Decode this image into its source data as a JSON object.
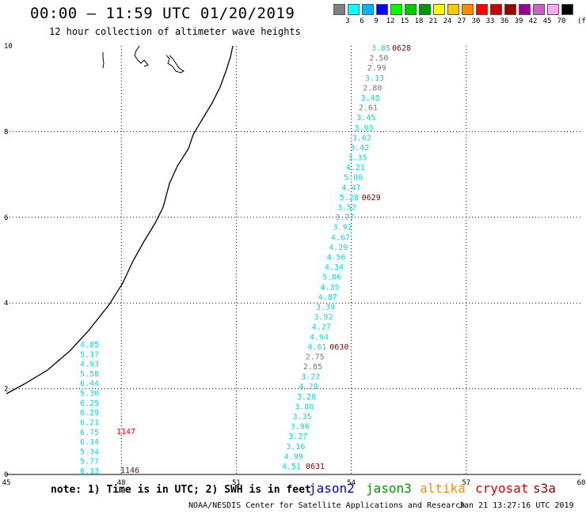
{
  "header": {
    "title": "00:00 – 11:59 UTC 01/20/2019",
    "subtitle": "12 hour collection of altimeter wave heights"
  },
  "legend": {
    "unit": "(ft)",
    "bins": [
      {
        "label": "3",
        "color": "#808080"
      },
      {
        "label": "6",
        "color": "#00ffff"
      },
      {
        "label": "9",
        "color": "#00b4ff"
      },
      {
        "label": "12",
        "color": "#0000ff"
      },
      {
        "label": "15",
        "color": "#00ff00"
      },
      {
        "label": "18",
        "color": "#00c800"
      },
      {
        "label": "21",
        "color": "#009600"
      },
      {
        "label": "24",
        "color": "#ffff00"
      },
      {
        "label": "27",
        "color": "#ffc800"
      },
      {
        "label": "30",
        "color": "#ff8c00"
      },
      {
        "label": "33",
        "color": "#ff0000"
      },
      {
        "label": "36",
        "color": "#c80000"
      },
      {
        "label": "39",
        "color": "#960000"
      },
      {
        "label": "42",
        "color": "#960096"
      },
      {
        "label": "45",
        "color": "#c864c8"
      },
      {
        "label": "70",
        "color": "#ffaaee"
      },
      {
        "label": "",
        "color": "#000000"
      }
    ]
  },
  "map": {
    "x_ticks": [
      "45",
      "48",
      "51",
      "54",
      "57",
      "60"
    ],
    "y_ticks": [
      "0",
      "2",
      "4",
      "6",
      "8",
      "10"
    ],
    "track_east": {
      "values": [
        "3.85",
        "2.50",
        "2.99",
        "3.13",
        "2.80",
        "3.45",
        "2.61",
        "3.45",
        "3.93",
        "3.62",
        "3.42",
        "3.35",
        "4.21",
        "5.00",
        "4.47",
        "5.28",
        "3.52",
        "3.77",
        "3.92",
        "4.67",
        "4.29",
        "4.56",
        "4.34",
        "5.06",
        "4.35",
        "4.87",
        "3.39",
        "3.92",
        "4.27",
        "4.94",
        "4.61",
        "2.75",
        "2.85",
        "3.22",
        "4.28",
        "3.26",
        "3.80",
        "3.35",
        "3.96",
        "3.27",
        "3.16",
        "4.99",
        "4.51"
      ],
      "times": [
        "0628",
        "0629",
        "0630",
        "0631"
      ]
    },
    "track_west": {
      "values": [
        "4.85",
        "5.17",
        "4.93",
        "5.58",
        "6.44",
        "5.30",
        "6.29",
        "6.29",
        "6.21",
        "6.75",
        "6.14",
        "5.34",
        "5.77",
        "6.13"
      ],
      "times": [
        "1147",
        "1146"
      ]
    }
  },
  "note": "note: 1) Time is in UTC; 2) SWH is in feet",
  "satellites": [
    {
      "name": "jason2",
      "color": "#0000cc"
    },
    {
      "name": "jason3",
      "color": "#009600"
    },
    {
      "name": "altika",
      "color": "#ff8c00"
    },
    {
      "name": "cryosat",
      "color": "#dd0000"
    },
    {
      "name": "s3a",
      "color": "#960000"
    }
  ],
  "footer": {
    "org": "NOAA/NESDIS Center for Satellite Applications and Research",
    "timestamp": "Jan 21 13:27:16 UTC 2019"
  }
}
